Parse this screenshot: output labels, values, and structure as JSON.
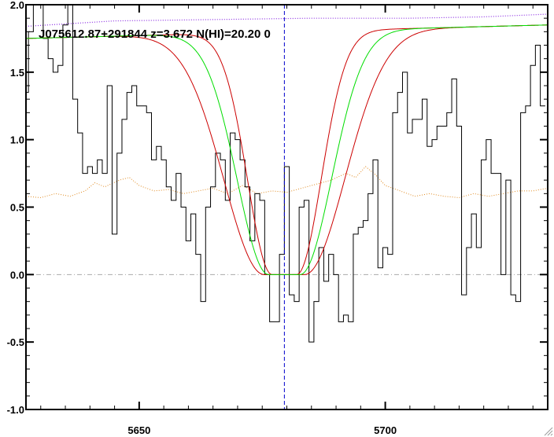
{
  "chart_data": {
    "type": "line",
    "title": "J075612.87+291844 z=3.672 N(HI)=20.20 0",
    "xlabel": "",
    "ylabel": "",
    "xlim": [
      5627,
      5733
    ],
    "ylim": [
      -1.0,
      2.0
    ],
    "x_ticks": [
      5650,
      5700
    ],
    "x_tick_labels": [
      "5650",
      "5700"
    ],
    "y_ticks": [
      -1.0,
      -0.5,
      0.0,
      0.5,
      1.0,
      1.5,
      2.0
    ],
    "y_tick_labels": [
      "-1.0",
      "-0.5",
      "0.0",
      "0.5",
      "1.0",
      "1.5",
      "2.0"
    ],
    "grid": false,
    "legend": "none",
    "reference_lines": {
      "zero_level": 0.0,
      "absorption_center_x": 5679.5
    },
    "colors": {
      "flux": "#000000",
      "model": "#00dd00",
      "model_bounds": "#cc0000",
      "continuum": "#8a2be2",
      "error": "#e08a20",
      "zero_line": "#aaaaaa",
      "center_line": "#0000cc"
    },
    "model_params": {
      "center": 5679.5,
      "continuum_at_left": 1.75,
      "continuum_at_right": 1.85,
      "width_best": 6.4,
      "width_low": 5.0,
      "width_high": 8.2,
      "floor_halfwidth": 3.2
    },
    "series": [
      {
        "role": "flux",
        "style": "step",
        "x": [
          5627.0,
          5628.0,
          5629.0,
          5630.0,
          5631.0,
          5632.0,
          5633.0,
          5634.0,
          5635.0,
          5636.0,
          5637.0,
          5638.0,
          5639.0,
          5640.0,
          5641.0,
          5642.0,
          5643.0,
          5644.0,
          5645.0,
          5646.0,
          5647.0,
          5648.0,
          5649.0,
          5650.0,
          5651.0,
          5652.0,
          5653.0,
          5654.0,
          5655.0,
          5656.0,
          5657.0,
          5658.0,
          5659.0,
          5660.0,
          5661.0,
          5662.0,
          5663.0,
          5664.0,
          5665.0,
          5666.0,
          5667.0,
          5668.0,
          5669.0,
          5670.0,
          5671.0,
          5672.0,
          5673.0,
          5674.0,
          5675.0,
          5676.0,
          5677.0,
          5678.0,
          5679.0,
          5680.0,
          5681.0,
          5682.0,
          5683.0,
          5684.0,
          5685.0,
          5686.0,
          5687.0,
          5688.0,
          5689.0,
          5690.0,
          5691.0,
          5692.0,
          5693.0,
          5694.0,
          5695.0,
          5696.0,
          5697.0,
          5698.0,
          5699.0,
          5700.0,
          5701.0,
          5702.0,
          5703.0,
          5704.0,
          5705.0,
          5706.0,
          5707.0,
          5708.0,
          5709.0,
          5710.0,
          5711.0,
          5712.0,
          5713.0,
          5714.0,
          5715.0,
          5716.0,
          5717.0,
          5718.0,
          5719.0,
          5720.0,
          5721.0,
          5722.0,
          5723.0,
          5724.0,
          5725.0,
          5726.0,
          5727.0,
          5728.0,
          5729.0,
          5730.0,
          5731.0,
          5732.0
        ],
        "y": [
          1.35,
          1.8,
          2.0,
          2.0,
          1.75,
          1.6,
          1.5,
          1.55,
          1.85,
          2.0,
          1.3,
          1.05,
          0.75,
          0.8,
          0.75,
          0.85,
          0.75,
          1.4,
          0.3,
          0.9,
          1.15,
          1.35,
          1.4,
          1.25,
          1.25,
          1.2,
          0.85,
          0.95,
          0.85,
          0.65,
          0.55,
          0.75,
          0.5,
          0.25,
          0.45,
          0.15,
          -0.2,
          0.5,
          0.65,
          0.9,
          0.85,
          0.55,
          1.05,
          1.0,
          0.85,
          0.65,
          0.25,
          0.6,
          0.55,
          0.0,
          -0.35,
          -0.35,
          0.15,
          0.8,
          -0.15,
          -0.2,
          0.5,
          0.55,
          -0.5,
          -0.2,
          0.2,
          -0.05,
          0.15,
          0.0,
          -0.35,
          -0.3,
          -0.35,
          0.3,
          0.35,
          0.4,
          0.6,
          0.85,
          0.05,
          0.2,
          0.15,
          1.2,
          1.35,
          1.5,
          1.05,
          1.15,
          1.15,
          1.3,
          0.95,
          1.0,
          1.1,
          1.1,
          1.2,
          1.45,
          1.1,
          -0.15,
          0.2,
          0.45,
          0.2,
          0.85,
          1.0,
          0.75,
          0.75,
          0.0,
          0.7,
          -0.15,
          -0.2,
          1.2,
          1.25,
          1.55,
          1.7,
          1.25
        ]
      },
      {
        "role": "error",
        "style": "dotted",
        "x": [
          5627,
          5630,
          5633,
          5636,
          5639,
          5641,
          5643,
          5646,
          5648,
          5650,
          5653,
          5656,
          5659,
          5662,
          5665,
          5668,
          5671,
          5674,
          5677,
          5680,
          5683,
          5686,
          5689,
          5692,
          5694,
          5696,
          5698,
          5700,
          5703,
          5706,
          5709,
          5712,
          5715,
          5718,
          5721,
          5724,
          5727,
          5730,
          5733
        ],
        "y": [
          0.58,
          0.57,
          0.6,
          0.58,
          0.62,
          0.68,
          0.65,
          0.7,
          0.72,
          0.66,
          0.62,
          0.63,
          0.6,
          0.62,
          0.64,
          0.6,
          0.66,
          0.6,
          0.62,
          0.61,
          0.64,
          0.67,
          0.7,
          0.75,
          0.72,
          0.8,
          0.74,
          0.66,
          0.62,
          0.58,
          0.6,
          0.58,
          0.57,
          0.6,
          0.58,
          0.6,
          0.62,
          0.62,
          0.64
        ]
      },
      {
        "role": "continuum",
        "style": "dotted",
        "x": [
          5627,
          5645,
          5665,
          5685,
          5705,
          5720,
          5733
        ],
        "y": [
          1.84,
          1.88,
          1.89,
          1.9,
          1.9,
          1.91,
          1.93
        ]
      }
    ]
  }
}
